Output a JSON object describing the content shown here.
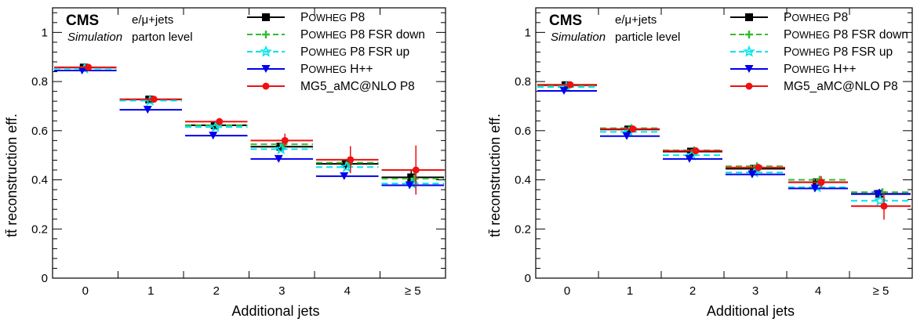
{
  "chart_data": [
    {
      "type": "line",
      "panel": "left",
      "experiment": "CMS",
      "simulation_label": "Simulation",
      "channel": "e/μ+jets",
      "level": "parton level",
      "xlabel": "Additional jets",
      "ylabel": "tt̄ reconstruction eff.",
      "categories": [
        "0",
        "1",
        "2",
        "3",
        "4",
        "≥ 5"
      ],
      "ylim": [
        0,
        1.1
      ],
      "yticks": [
        "0",
        "0.2",
        "0.4",
        "0.6",
        "0.8",
        "1"
      ],
      "series": [
        {
          "name": "POWHEG P8",
          "color": "#000000",
          "marker": "square",
          "dash": "solid",
          "values": [
            0.857,
            0.727,
            0.622,
            0.535,
            0.465,
            0.41
          ],
          "errors": [
            0.005,
            0.006,
            0.008,
            0.012,
            0.02,
            0.03
          ]
        },
        {
          "name": "POWHEG P8 FSR down",
          "color": "#33bb33",
          "marker": "cross",
          "dash": "dash",
          "values": [
            0.855,
            0.725,
            0.622,
            0.545,
            0.47,
            0.405
          ],
          "errors": [
            0,
            0,
            0,
            0,
            0,
            0
          ]
        },
        {
          "name": "POWHEG P8 FSR up",
          "color": "#00e5ee",
          "marker": "open-star",
          "dash": "dash",
          "values": [
            0.853,
            0.722,
            0.615,
            0.525,
            0.452,
            0.385
          ],
          "errors": [
            0,
            0,
            0,
            0,
            0,
            0
          ]
        },
        {
          "name": "POWHEG H++",
          "color": "#0000ee",
          "marker": "triangle-down",
          "dash": "solid",
          "values": [
            0.845,
            0.685,
            0.58,
            0.485,
            0.415,
            0.378
          ],
          "errors": [
            0,
            0,
            0,
            0,
            0,
            0
          ]
        },
        {
          "name": "MG5_aMC@NLO P8",
          "color": "#ee1111",
          "marker": "circle",
          "dash": "solid",
          "values": [
            0.858,
            0.728,
            0.637,
            0.56,
            0.482,
            0.44
          ],
          "errors": [
            0.006,
            0.01,
            0.015,
            0.028,
            0.055,
            0.1
          ]
        }
      ],
      "legend": {
        "position": "top-right"
      }
    },
    {
      "type": "line",
      "panel": "right",
      "experiment": "CMS",
      "simulation_label": "Simulation",
      "channel": "e/μ+jets",
      "level": "particle level",
      "xlabel": "Additional jets",
      "ylabel": "tt̄ reconstruction eff.",
      "categories": [
        "0",
        "1",
        "2",
        "3",
        "4",
        "≥ 5"
      ],
      "ylim": [
        0,
        1.1
      ],
      "yticks": [
        "0",
        "0.2",
        "0.4",
        "0.6",
        "0.8",
        "1"
      ],
      "series": [
        {
          "name": "POWHEG P8",
          "color": "#000000",
          "marker": "square",
          "dash": "solid",
          "values": [
            0.785,
            0.605,
            0.515,
            0.445,
            0.39,
            0.343
          ],
          "errors": [
            0.005,
            0.006,
            0.007,
            0.01,
            0.015,
            0.02
          ]
        },
        {
          "name": "POWHEG P8 FSR down",
          "color": "#33bb33",
          "marker": "cross",
          "dash": "dash",
          "values": [
            0.784,
            0.61,
            0.52,
            0.455,
            0.4,
            0.35
          ],
          "errors": [
            0,
            0,
            0,
            0,
            0,
            0
          ]
        },
        {
          "name": "POWHEG P8 FSR up",
          "color": "#00e5ee",
          "marker": "open-star",
          "dash": "dash",
          "values": [
            0.778,
            0.595,
            0.5,
            0.43,
            0.37,
            0.315
          ],
          "errors": [
            0,
            0,
            0,
            0,
            0,
            0
          ]
        },
        {
          "name": "POWHEG H++",
          "color": "#0000ee",
          "marker": "triangle-down",
          "dash": "solid",
          "values": [
            0.762,
            0.578,
            0.485,
            0.422,
            0.365,
            0.342
          ],
          "errors": [
            0,
            0,
            0,
            0,
            0,
            0
          ]
        },
        {
          "name": "MG5_aMC@NLO P8",
          "color": "#ee1111",
          "marker": "circle",
          "dash": "solid",
          "values": [
            0.787,
            0.607,
            0.518,
            0.45,
            0.39,
            0.293
          ],
          "errors": [
            0.005,
            0.008,
            0.01,
            0.015,
            0.025,
            0.055
          ]
        }
      ],
      "legend": {
        "position": "top-right"
      }
    }
  ]
}
